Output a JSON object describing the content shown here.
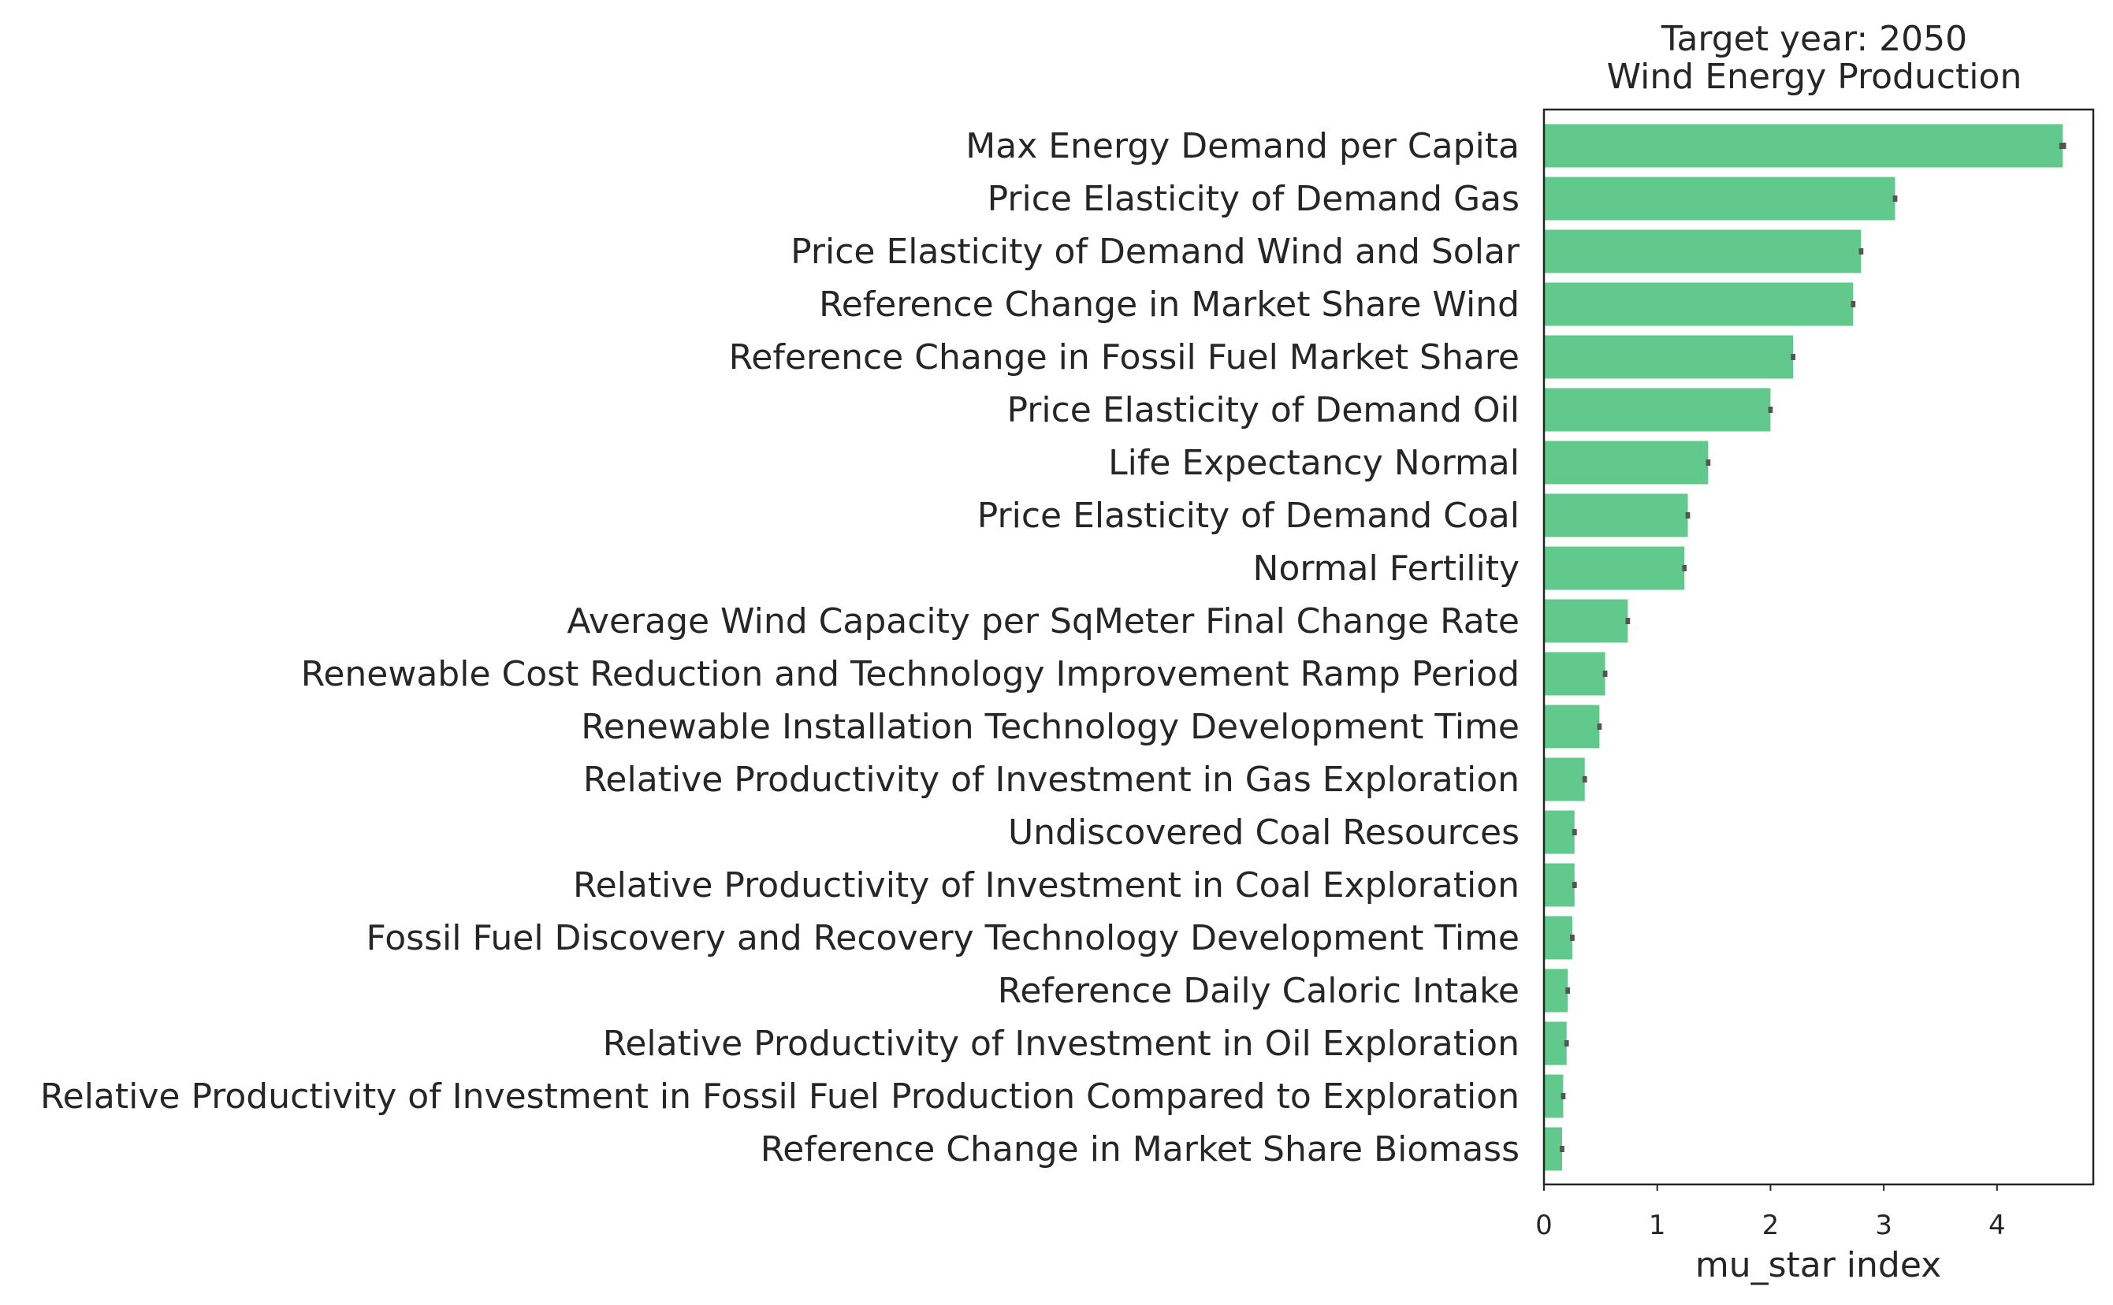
{
  "chart_data": {
    "type": "bar",
    "orientation": "horizontal",
    "title": "Target year: 2050",
    "subtitle": "Wind Energy Production",
    "xlabel": "mu_star index",
    "ylabel": "",
    "xlim": [
      0,
      4.85
    ],
    "xticks": [
      "0",
      "1",
      "2",
      "3",
      "4"
    ],
    "grid": false,
    "bar_color": "#62c98d",
    "errorbar_color": "#555555",
    "categories": [
      "Max Energy Demand per Capita",
      "Price Elasticity of Demand Gas",
      "Price Elasticity of Demand Wind and Solar",
      "Reference Change in Market Share Wind",
      "Reference Change in Fossil Fuel Market Share",
      "Price Elasticity of Demand Oil",
      "Life Expectancy Normal",
      "Price Elasticity of Demand Coal",
      "Normal Fertility",
      "Average Wind Capacity per SqMeter Final Change Rate",
      "Renewable Cost Reduction and Technology Improvement Ramp Period",
      "Renewable Installation Technology Development Time",
      "Relative Productivity of Investment in Gas Exploration",
      "Undiscovered Coal Resources",
      "Relative Productivity of Investment in Coal Exploration",
      "Fossil Fuel Discovery and Recovery Technology Development Time",
      "Reference Daily Caloric Intake",
      "Relative Productivity of Investment in Oil Exploration",
      "Relative Productivity of Investment in Fossil Fuel Production Compared to Exploration",
      "Reference Change in Market Share Biomass"
    ],
    "values": [
      4.58,
      3.1,
      2.8,
      2.73,
      2.2,
      2.0,
      1.45,
      1.27,
      1.24,
      0.74,
      0.54,
      0.49,
      0.36,
      0.27,
      0.27,
      0.25,
      0.21,
      0.2,
      0.17,
      0.16
    ],
    "errors": [
      0.03,
      0.02,
      0.02,
      0.02,
      0.02,
      0.02,
      0.02,
      0.02,
      0.02,
      0.02,
      0.02,
      0.02,
      0.02,
      0.02,
      0.02,
      0.02,
      0.02,
      0.02,
      0.02,
      0.02
    ]
  }
}
